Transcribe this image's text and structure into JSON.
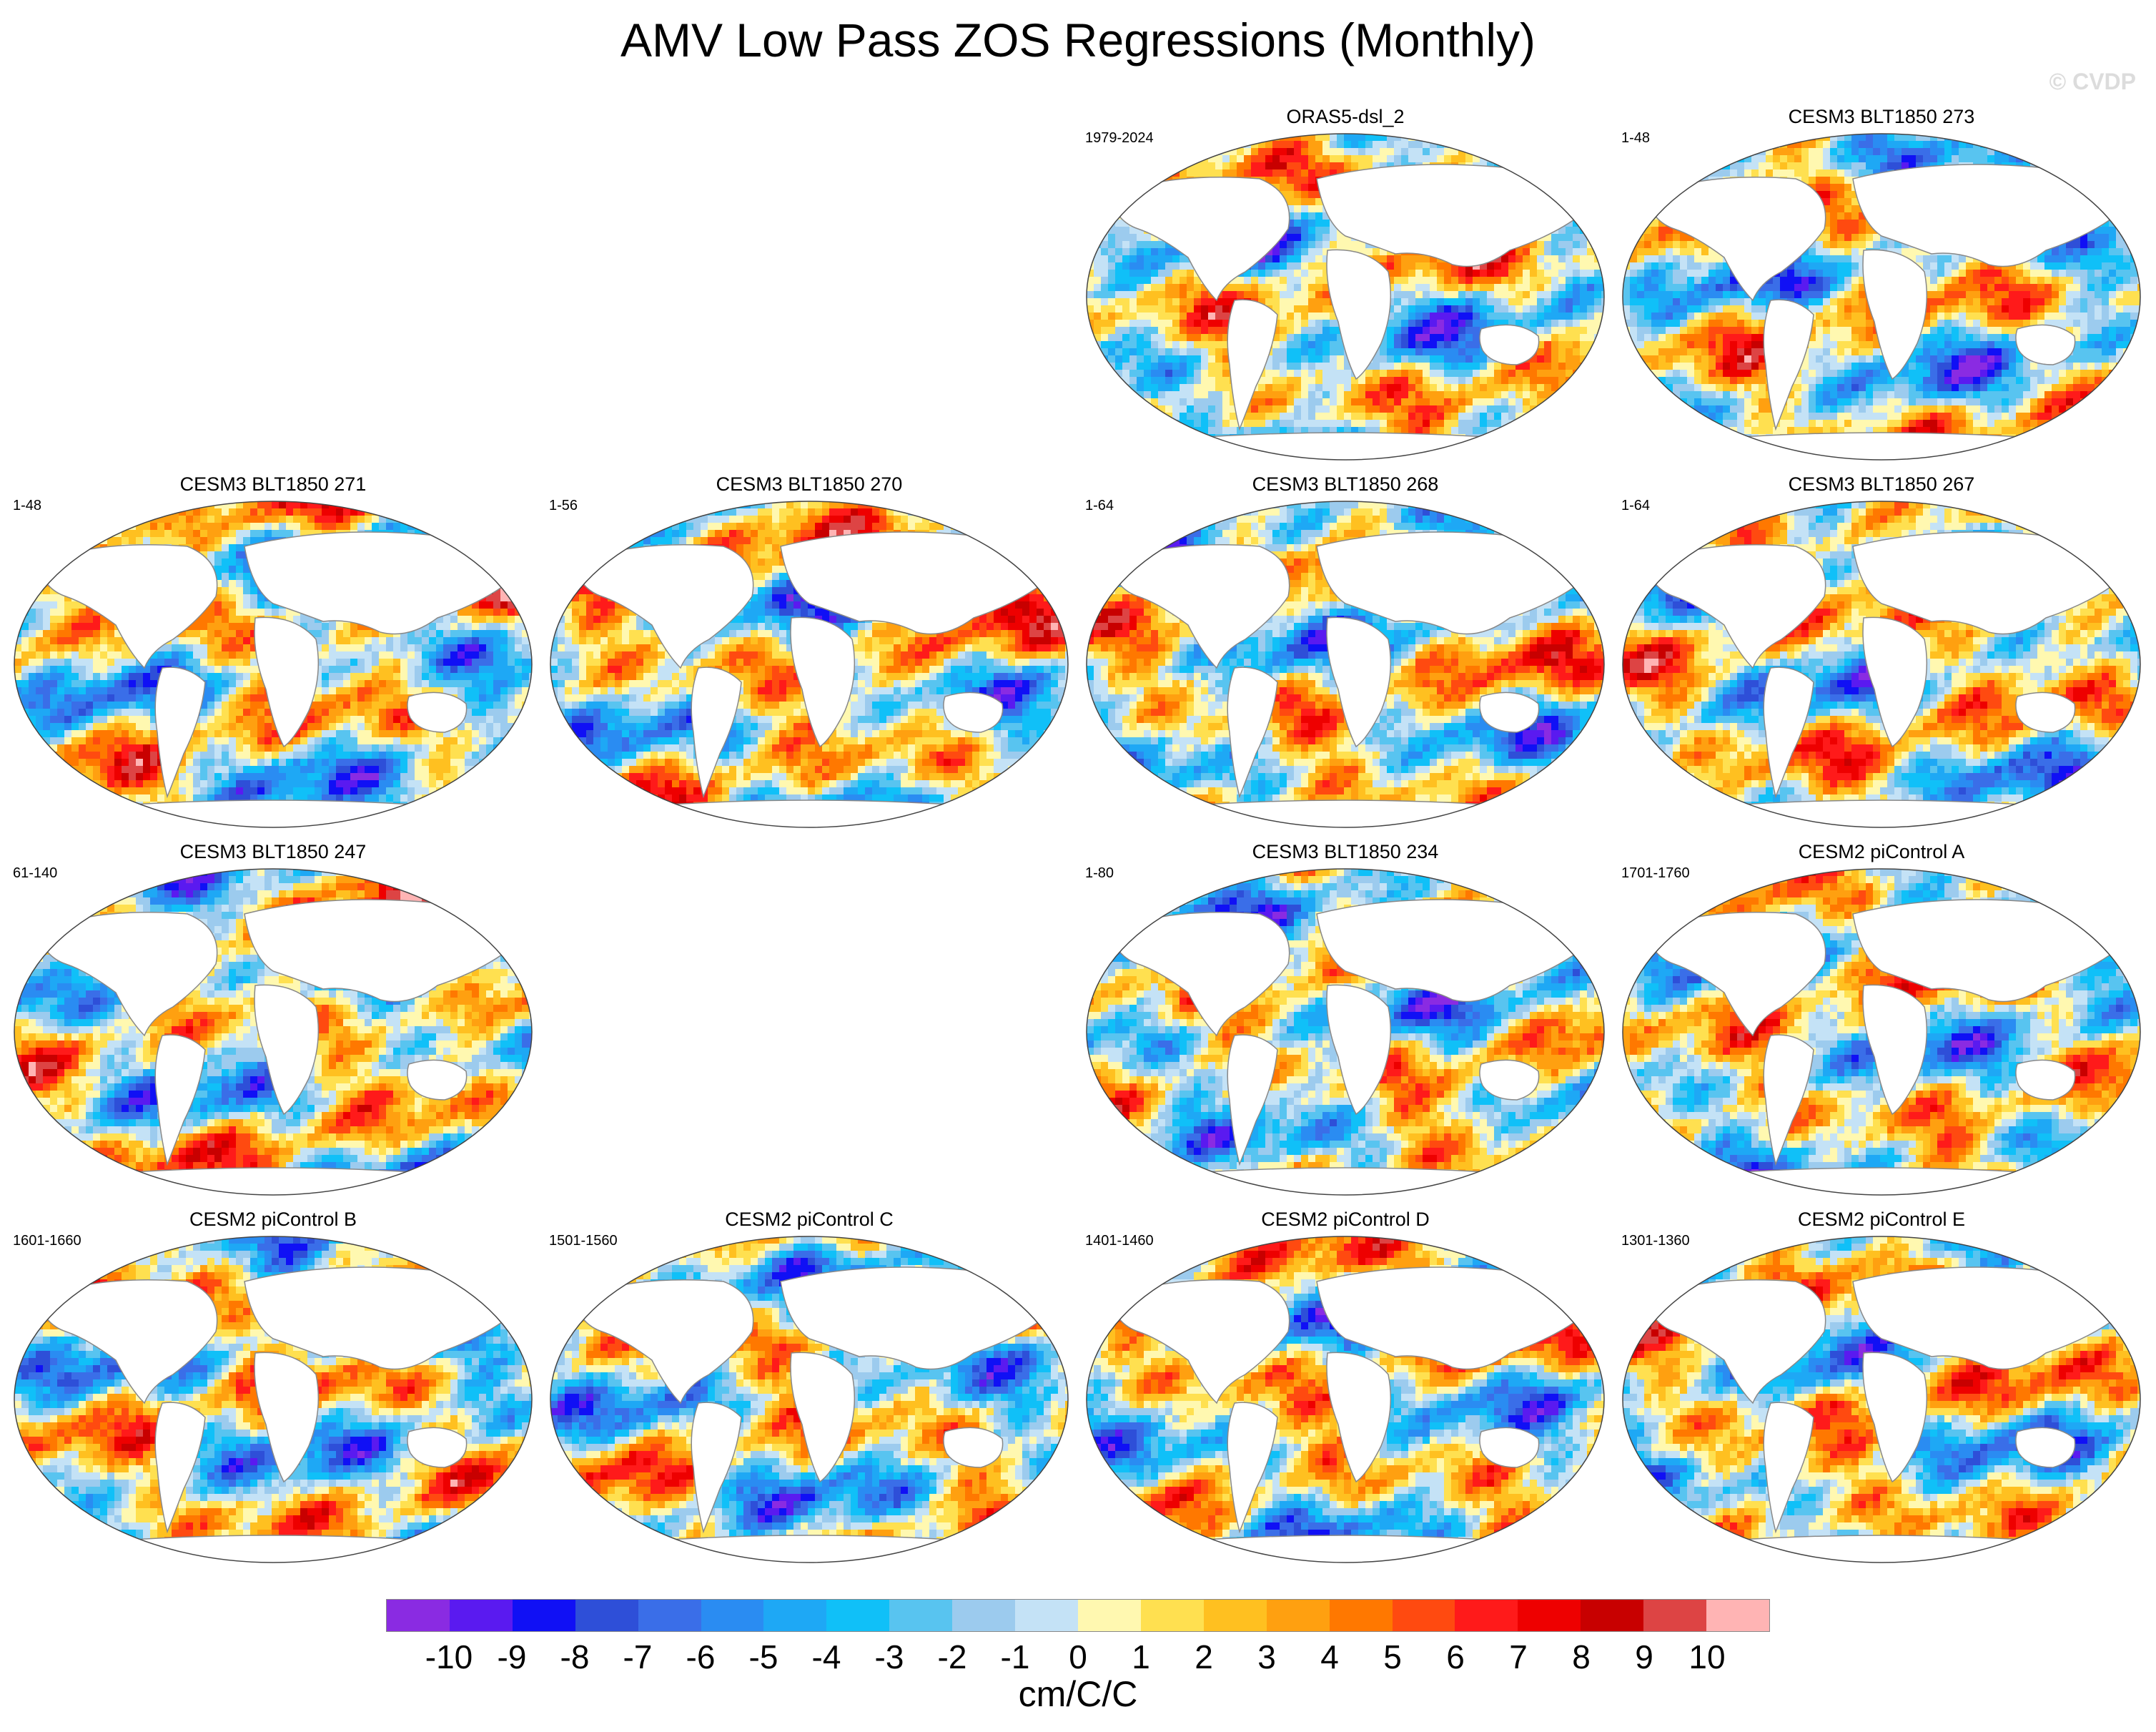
{
  "title": "AMV Low Pass ZOS Regressions (Monthly)",
  "watermark": "© CVDP",
  "panels": [
    {
      "title": "ORAS5-dsl_2",
      "period": "1979-2024"
    },
    {
      "title": "CESM3 BLT1850 273",
      "period": "1-48"
    },
    {
      "title": "CESM3 BLT1850 271",
      "period": "1-48"
    },
    {
      "title": "CESM3 BLT1850 270",
      "period": "1-56"
    },
    {
      "title": "CESM3 BLT1850 268",
      "period": "1-64"
    },
    {
      "title": "CESM3 BLT1850 267",
      "period": "1-64"
    },
    {
      "title": "CESM3 BLT1850 247",
      "period": "61-140"
    },
    {
      "title": "CESM3 BLT1850 234",
      "period": "1-80"
    },
    {
      "title": "CESM2 piControl A",
      "period": "1701-1760"
    },
    {
      "title": "CESM2 piControl B",
      "period": "1601-1660"
    },
    {
      "title": "CESM2 piControl C",
      "period": "1501-1560"
    },
    {
      "title": "CESM2 piControl D",
      "period": "1401-1460"
    },
    {
      "title": "CESM2 piControl E",
      "period": "1301-1360"
    }
  ],
  "colorbar": {
    "colors": [
      "#8a2be2",
      "#5a1af0",
      "#1010f5",
      "#2e4fd8",
      "#3a6ee8",
      "#2a8cf2",
      "#1ea8f5",
      "#10c0f8",
      "#58c4f0",
      "#9ccbee",
      "#c4e2f6",
      "#fff8b0",
      "#ffe050",
      "#ffc020",
      "#ffa010",
      "#ff7800",
      "#ff4a10",
      "#ff1a1a",
      "#ee0000",
      "#c80000",
      "#dd4444",
      "#ffb4b4"
    ],
    "ticks": [
      "-10",
      "-9",
      "-8",
      "-7",
      "-6",
      "-5",
      "-4",
      "-3",
      "-2",
      "-1",
      "0",
      "1",
      "2",
      "3",
      "4",
      "5",
      "6",
      "7",
      "8",
      "9",
      "10"
    ],
    "units": "cm/C/C"
  }
}
